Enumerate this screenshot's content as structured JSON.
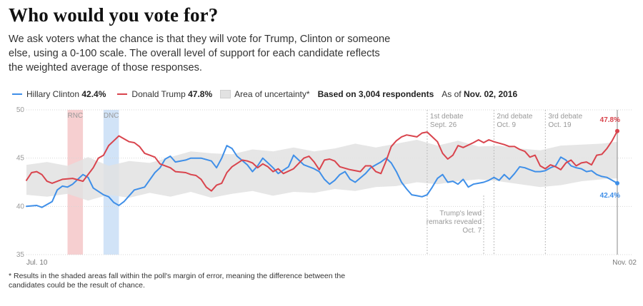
{
  "title": "Who would you vote for?",
  "subtitle": "We ask voters what the chance is that they will vote for Trump, Clinton or someone else, using a 0-100 scale. The overall level of support for each candidate reflects the weighted average of those responses.",
  "legend": {
    "clinton_label": "Hillary Clinton",
    "clinton_value": "42.4%",
    "trump_label": "Donald Trump",
    "trump_value": "47.8%",
    "uncertainty_label": "Area of uncertainty*",
    "respondents": "Based on 3,004 respondents",
    "as_of_label": "As of",
    "as_of_date": "Nov. 02, 2016"
  },
  "footnote": "* Results in the shaded areas fall within the poll's margin of error, meaning the difference between the candidates could be the result of chance.",
  "colors": {
    "clinton": "#3f8fe8",
    "trump": "#d9444d",
    "uncertainty": "#e2e2e2",
    "rnc_band": "#f5cccd",
    "dnc_band": "#cfe1f7"
  },
  "chart_data": {
    "type": "line",
    "x_start": "2016-07-10",
    "x_end": "2016-11-02",
    "ylim": [
      35,
      50
    ],
    "y_ticks": [
      35,
      40,
      45,
      50
    ],
    "x_tick_labels": [
      "Jul. 10",
      "Nov. 02"
    ],
    "conventions": [
      {
        "label": "RNC",
        "start": "2016-07-18",
        "end": "2016-07-21",
        "color": "#f5cccd"
      },
      {
        "label": "DNC",
        "start": "2016-07-25",
        "end": "2016-07-28",
        "color": "#cfe1f7"
      }
    ],
    "events": [
      {
        "date": "2016-09-26",
        "lines": [
          "1st debate",
          "Sept. 26"
        ],
        "position": "top"
      },
      {
        "date": "2016-10-09",
        "lines": [
          "2nd debate",
          "Oct. 9"
        ],
        "position": "top"
      },
      {
        "date": "2016-10-19",
        "lines": [
          "3rd debate",
          "Oct. 19"
        ],
        "position": "top"
      },
      {
        "date": "2016-10-07",
        "lines": [
          "Trump's lewd",
          "remarks revealed",
          "Oct. 7"
        ],
        "position": "bottom"
      }
    ],
    "end_labels": {
      "trump": "47.8%",
      "clinton": "42.4%"
    },
    "series": [
      {
        "name": "Hillary Clinton",
        "color": "#3f8fe8",
        "points": [
          [
            "2016-07-10",
            40.0
          ],
          [
            "2016-07-12",
            40.1
          ],
          [
            "2016-07-13",
            39.9
          ],
          [
            "2016-07-15",
            40.5
          ],
          [
            "2016-07-16",
            41.7
          ],
          [
            "2016-07-17",
            42.1
          ],
          [
            "2016-07-18",
            42.0
          ],
          [
            "2016-07-19",
            42.3
          ],
          [
            "2016-07-21",
            43.3
          ],
          [
            "2016-07-22",
            43.0
          ],
          [
            "2016-07-23",
            41.9
          ],
          [
            "2016-07-25",
            41.2
          ],
          [
            "2016-07-26",
            41.0
          ],
          [
            "2016-07-27",
            40.4
          ],
          [
            "2016-07-28",
            40.1
          ],
          [
            "2016-07-29",
            40.5
          ],
          [
            "2016-07-31",
            41.7
          ],
          [
            "2016-08-02",
            42.0
          ],
          [
            "2016-08-04",
            43.5
          ],
          [
            "2016-08-05",
            44.0
          ],
          [
            "2016-08-06",
            44.9
          ],
          [
            "2016-08-07",
            45.2
          ],
          [
            "2016-08-08",
            44.6
          ],
          [
            "2016-08-10",
            44.8
          ],
          [
            "2016-08-11",
            45.0
          ],
          [
            "2016-08-13",
            45.0
          ],
          [
            "2016-08-15",
            44.7
          ],
          [
            "2016-08-16",
            44.0
          ],
          [
            "2016-08-17",
            45.0
          ],
          [
            "2016-08-18",
            46.3
          ],
          [
            "2016-08-19",
            46.0
          ],
          [
            "2016-08-20",
            45.2
          ],
          [
            "2016-08-22",
            44.3
          ],
          [
            "2016-08-23",
            43.6
          ],
          [
            "2016-08-24",
            44.2
          ],
          [
            "2016-08-25",
            45.0
          ],
          [
            "2016-08-27",
            44.0
          ],
          [
            "2016-08-28",
            43.4
          ],
          [
            "2016-08-30",
            44.1
          ],
          [
            "2016-08-31",
            45.3
          ],
          [
            "2016-09-01",
            44.8
          ],
          [
            "2016-09-02",
            44.3
          ],
          [
            "2016-09-04",
            43.9
          ],
          [
            "2016-09-05",
            43.6
          ],
          [
            "2016-09-06",
            42.8
          ],
          [
            "2016-09-07",
            42.3
          ],
          [
            "2016-09-08",
            42.7
          ],
          [
            "2016-09-09",
            43.3
          ],
          [
            "2016-09-10",
            43.6
          ],
          [
            "2016-09-11",
            42.8
          ],
          [
            "2016-09-12",
            42.5
          ],
          [
            "2016-09-14",
            43.4
          ],
          [
            "2016-09-15",
            44.0
          ],
          [
            "2016-09-16",
            44.3
          ],
          [
            "2016-09-17",
            44.6
          ],
          [
            "2016-09-18",
            45.0
          ],
          [
            "2016-09-19",
            44.5
          ],
          [
            "2016-09-20",
            43.6
          ],
          [
            "2016-09-21",
            42.5
          ],
          [
            "2016-09-22",
            41.8
          ],
          [
            "2016-09-23",
            41.2
          ],
          [
            "2016-09-24",
            41.1
          ],
          [
            "2016-09-25",
            41.0
          ],
          [
            "2016-09-26",
            41.2
          ],
          [
            "2016-09-27",
            42.0
          ],
          [
            "2016-09-28",
            42.9
          ],
          [
            "2016-09-29",
            43.3
          ],
          [
            "2016-09-30",
            42.5
          ],
          [
            "2016-10-01",
            42.6
          ],
          [
            "2016-10-02",
            42.3
          ],
          [
            "2016-10-03",
            42.8
          ],
          [
            "2016-10-04",
            42.0
          ],
          [
            "2016-10-05",
            42.3
          ],
          [
            "2016-10-06",
            42.4
          ],
          [
            "2016-10-07",
            42.5
          ],
          [
            "2016-10-08",
            42.7
          ],
          [
            "2016-10-09",
            43.0
          ],
          [
            "2016-10-10",
            42.7
          ],
          [
            "2016-10-11",
            43.3
          ],
          [
            "2016-10-12",
            42.8
          ],
          [
            "2016-10-13",
            43.4
          ],
          [
            "2016-10-14",
            44.1
          ],
          [
            "2016-10-15",
            44.0
          ],
          [
            "2016-10-16",
            43.8
          ],
          [
            "2016-10-17",
            43.6
          ],
          [
            "2016-10-18",
            43.6
          ],
          [
            "2016-10-19",
            43.7
          ],
          [
            "2016-10-20",
            44.0
          ],
          [
            "2016-10-21",
            44.2
          ],
          [
            "2016-10-22",
            45.1
          ],
          [
            "2016-10-23",
            44.8
          ],
          [
            "2016-10-24",
            44.2
          ],
          [
            "2016-10-25",
            44.0
          ],
          [
            "2016-10-26",
            43.9
          ],
          [
            "2016-10-27",
            43.6
          ],
          [
            "2016-10-28",
            43.7
          ],
          [
            "2016-10-29",
            43.3
          ],
          [
            "2016-10-30",
            43.1
          ],
          [
            "2016-10-31",
            43.0
          ],
          [
            "2016-11-01",
            42.7
          ],
          [
            "2016-11-02",
            42.4
          ]
        ]
      },
      {
        "name": "Donald Trump",
        "color": "#d9444d",
        "points": [
          [
            "2016-07-10",
            42.7
          ],
          [
            "2016-07-11",
            43.5
          ],
          [
            "2016-07-12",
            43.6
          ],
          [
            "2016-07-13",
            43.3
          ],
          [
            "2016-07-14",
            42.6
          ],
          [
            "2016-07-15",
            42.4
          ],
          [
            "2016-07-17",
            42.8
          ],
          [
            "2016-07-19",
            42.9
          ],
          [
            "2016-07-21",
            42.6
          ],
          [
            "2016-07-23",
            44.0
          ],
          [
            "2016-07-24",
            45.0
          ],
          [
            "2016-07-25",
            45.3
          ],
          [
            "2016-07-26",
            46.3
          ],
          [
            "2016-07-27",
            46.8
          ],
          [
            "2016-07-28",
            47.3
          ],
          [
            "2016-07-29",
            47.0
          ],
          [
            "2016-07-30",
            46.7
          ],
          [
            "2016-07-31",
            46.6
          ],
          [
            "2016-08-01",
            46.2
          ],
          [
            "2016-08-02",
            45.5
          ],
          [
            "2016-08-03",
            45.3
          ],
          [
            "2016-08-04",
            45.1
          ],
          [
            "2016-08-05",
            44.4
          ],
          [
            "2016-08-07",
            44.0
          ],
          [
            "2016-08-08",
            43.6
          ],
          [
            "2016-08-10",
            43.5
          ],
          [
            "2016-08-11",
            43.3
          ],
          [
            "2016-08-12",
            43.2
          ],
          [
            "2016-08-13",
            42.8
          ],
          [
            "2016-08-14",
            42.0
          ],
          [
            "2016-08-15",
            41.6
          ],
          [
            "2016-08-16",
            42.2
          ],
          [
            "2016-08-17",
            42.4
          ],
          [
            "2016-08-18",
            43.5
          ],
          [
            "2016-08-19",
            44.1
          ],
          [
            "2016-08-21",
            44.8
          ],
          [
            "2016-08-22",
            44.7
          ],
          [
            "2016-08-23",
            44.5
          ],
          [
            "2016-08-24",
            44.0
          ],
          [
            "2016-08-25",
            44.4
          ],
          [
            "2016-08-26",
            44.1
          ],
          [
            "2016-08-27",
            43.6
          ],
          [
            "2016-08-28",
            43.9
          ],
          [
            "2016-08-29",
            43.4
          ],
          [
            "2016-08-31",
            43.9
          ],
          [
            "2016-09-02",
            45.0
          ],
          [
            "2016-09-03",
            45.2
          ],
          [
            "2016-09-04",
            44.6
          ],
          [
            "2016-09-05",
            43.8
          ],
          [
            "2016-09-06",
            44.8
          ],
          [
            "2016-09-07",
            44.9
          ],
          [
            "2016-09-08",
            44.7
          ],
          [
            "2016-09-09",
            44.1
          ],
          [
            "2016-09-11",
            43.8
          ],
          [
            "2016-09-13",
            43.6
          ],
          [
            "2016-09-14",
            44.2
          ],
          [
            "2016-09-15",
            44.2
          ],
          [
            "2016-09-16",
            43.6
          ],
          [
            "2016-09-17",
            43.4
          ],
          [
            "2016-09-18",
            44.7
          ],
          [
            "2016-09-19",
            46.2
          ],
          [
            "2016-09-20",
            46.8
          ],
          [
            "2016-09-21",
            47.2
          ],
          [
            "2016-09-22",
            47.4
          ],
          [
            "2016-09-23",
            47.3
          ],
          [
            "2016-09-24",
            47.2
          ],
          [
            "2016-09-25",
            47.6
          ],
          [
            "2016-09-26",
            47.7
          ],
          [
            "2016-09-27",
            47.2
          ],
          [
            "2016-09-28",
            46.7
          ],
          [
            "2016-09-29",
            45.5
          ],
          [
            "2016-09-30",
            44.9
          ],
          [
            "2016-10-01",
            45.3
          ],
          [
            "2016-10-02",
            46.3
          ],
          [
            "2016-10-03",
            46.1
          ],
          [
            "2016-10-05",
            46.6
          ],
          [
            "2016-10-06",
            46.9
          ],
          [
            "2016-10-07",
            46.6
          ],
          [
            "2016-10-08",
            46.9
          ],
          [
            "2016-10-09",
            46.7
          ],
          [
            "2016-10-11",
            46.4
          ],
          [
            "2016-10-12",
            46.2
          ],
          [
            "2016-10-13",
            46.2
          ],
          [
            "2016-10-14",
            45.9
          ],
          [
            "2016-10-15",
            45.7
          ],
          [
            "2016-10-16",
            45.1
          ],
          [
            "2016-10-17",
            45.3
          ],
          [
            "2016-10-18",
            44.2
          ],
          [
            "2016-10-19",
            43.9
          ],
          [
            "2016-10-20",
            44.3
          ],
          [
            "2016-10-21",
            44.1
          ],
          [
            "2016-10-22",
            43.8
          ],
          [
            "2016-10-23",
            44.5
          ],
          [
            "2016-10-24",
            44.8
          ],
          [
            "2016-10-25",
            44.2
          ],
          [
            "2016-10-26",
            44.5
          ],
          [
            "2016-10-27",
            44.6
          ],
          [
            "2016-10-28",
            44.3
          ],
          [
            "2016-10-29",
            45.3
          ],
          [
            "2016-10-30",
            45.4
          ],
          [
            "2016-10-31",
            46.0
          ],
          [
            "2016-11-01",
            46.8
          ],
          [
            "2016-11-02",
            47.8
          ]
        ]
      }
    ],
    "uncertainty": {
      "name": "Area of uncertainty",
      "points": [
        [
          "2016-07-10",
          41.2,
          44.3
        ],
        [
          "2016-07-14",
          41.0,
          44.6
        ],
        [
          "2016-07-18",
          41.3,
          44.2
        ],
        [
          "2016-07-22",
          40.6,
          45.1
        ],
        [
          "2016-07-26",
          41.2,
          44.2
        ],
        [
          "2016-07-30",
          40.9,
          44.7
        ],
        [
          "2016-08-03",
          41.4,
          44.5
        ],
        [
          "2016-08-07",
          41.0,
          45.1
        ],
        [
          "2016-08-11",
          41.5,
          45.7
        ],
        [
          "2016-08-15",
          40.9,
          45.5
        ],
        [
          "2016-08-19",
          41.3,
          45.4
        ],
        [
          "2016-08-23",
          41.6,
          45.9
        ],
        [
          "2016-08-27",
          41.1,
          45.7
        ],
        [
          "2016-08-31",
          41.5,
          46.1
        ],
        [
          "2016-09-04",
          41.4,
          45.7
        ],
        [
          "2016-09-08",
          41.8,
          46.0
        ],
        [
          "2016-09-12",
          41.6,
          46.5
        ],
        [
          "2016-09-16",
          42.0,
          46.1
        ],
        [
          "2016-09-20",
          42.1,
          46.5
        ],
        [
          "2016-09-24",
          42.5,
          46.9
        ],
        [
          "2016-09-28",
          42.3,
          46.3
        ],
        [
          "2016-10-02",
          42.6,
          46.8
        ],
        [
          "2016-10-06",
          42.8,
          46.2
        ],
        [
          "2016-10-10",
          42.6,
          46.3
        ],
        [
          "2016-10-14",
          42.3,
          46.0
        ],
        [
          "2016-10-18",
          42.0,
          45.8
        ],
        [
          "2016-10-22",
          42.2,
          46.3
        ],
        [
          "2016-10-26",
          42.6,
          46.4
        ],
        [
          "2016-10-30",
          42.8,
          46.5
        ],
        [
          "2016-11-02",
          42.9,
          46.7
        ]
      ]
    }
  }
}
